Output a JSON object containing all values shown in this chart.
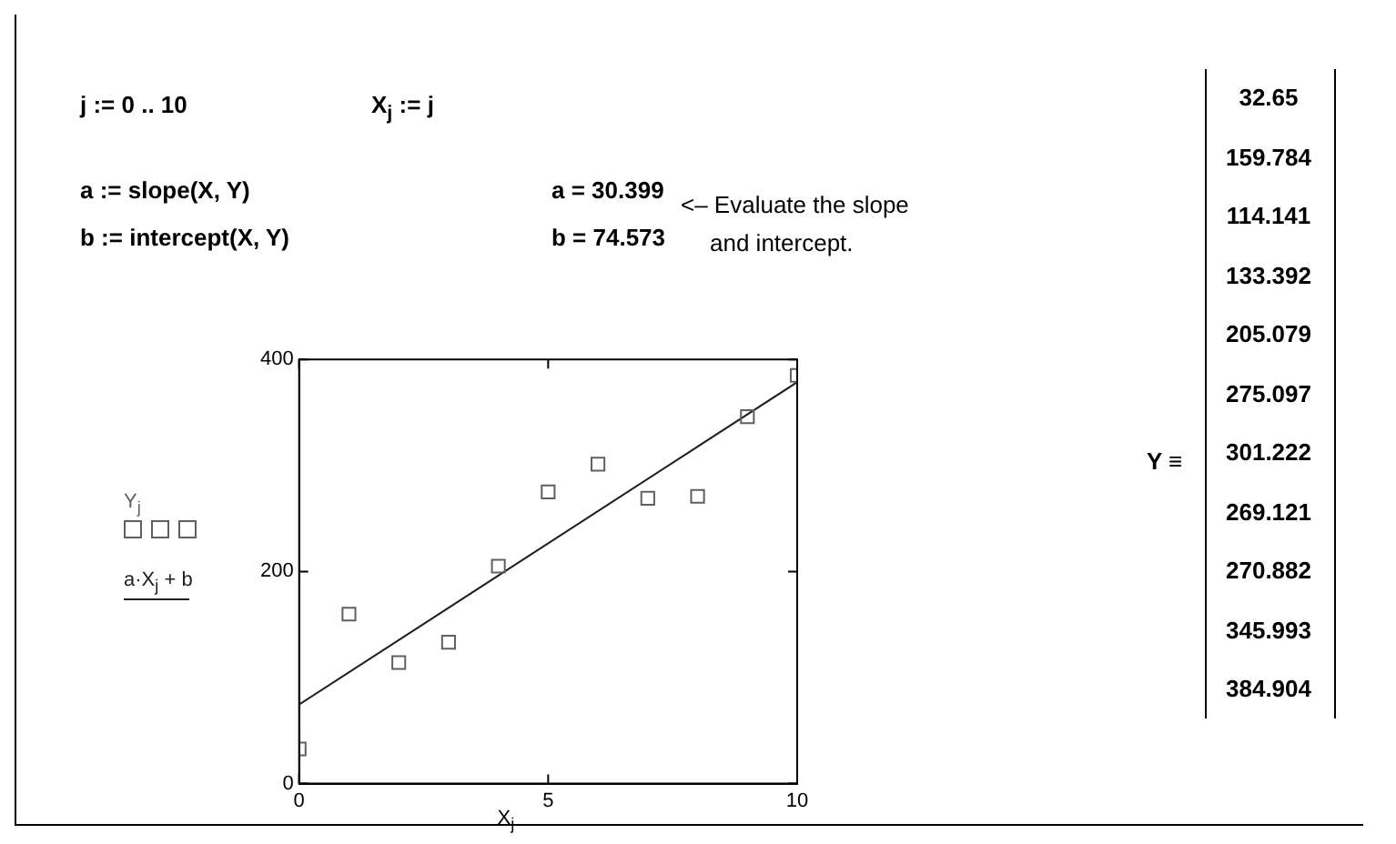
{
  "chart_data": {
    "type": "scatter",
    "xlabel": "X$_{j}$",
    "annotations": [
      "j := 0 .. 10",
      "X$_{j}$ := j",
      "a := slope(X, Y)",
      "a = 30.399",
      "<– Evaluate the slope",
      "b := intercept(X, Y)",
      "b = 74.573",
      "and intercept.",
      "Y ≡",
      "32.65",
      "159.784",
      "114.141",
      "133.392",
      "205.079",
      "275.097",
      "301.222",
      "269.121",
      "270.882",
      "345.993",
      "384.904"
    ],
    "series": [
      {
        "name": "Y$_{j}$",
        "color": "#606060",
        "marker": "square",
        "x": [
          0,
          1,
          2,
          3,
          4,
          5,
          6,
          7,
          8,
          9,
          10
        ],
        "values": [
          32.65,
          159.784,
          114.141,
          133.392,
          205.079,
          275.097,
          301.222,
          269.121,
          270.882,
          345.993,
          384.904
        ]
      },
      {
        "name": "a·X$_{j}$ + b",
        "type": "line",
        "color": "#202020",
        "marker": "none",
        "x": [
          0,
          10
        ],
        "values": [
          74.573,
          378.563
        ]
      }
    ],
    "xlim": [
      0,
      10
    ],
    "xticks": [
      0,
      5,
      10
    ],
    "ylim": [
      0,
      400
    ],
    "yticks": [
      0,
      200,
      400
    ],
    "grid": false,
    "legend": "left",
    "line_style": "solid"
  }
}
